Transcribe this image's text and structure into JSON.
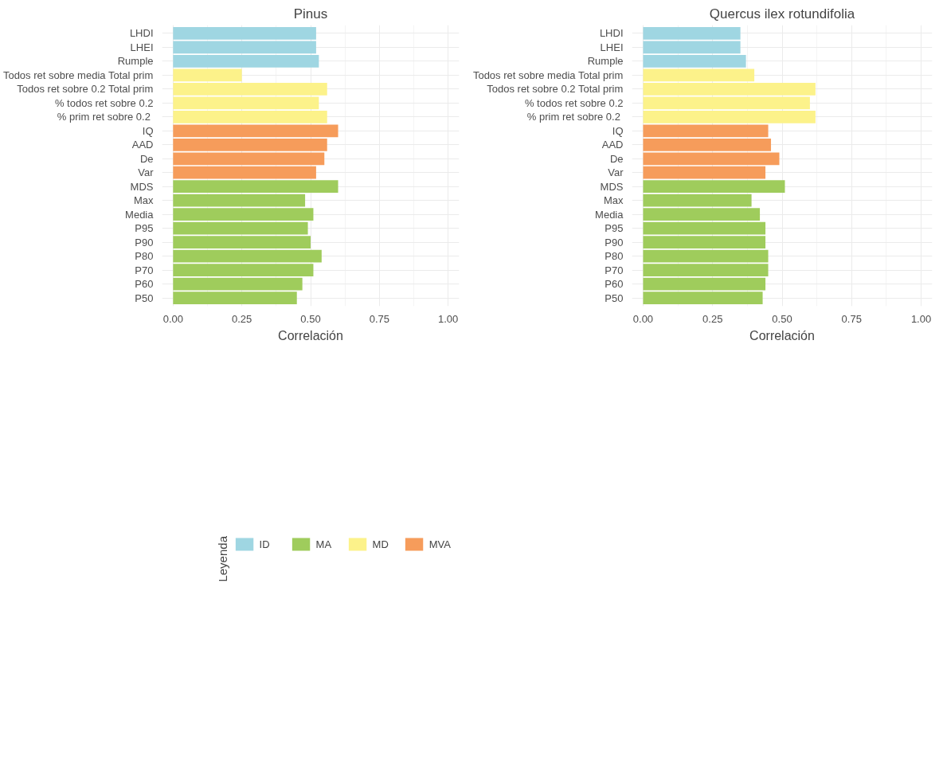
{
  "chart_data": [
    {
      "type": "bar",
      "orientation": "horizontal",
      "title": "Pinus",
      "xlabel": "Correlación",
      "legend_title": "Leyenda",
      "legend": "bottom",
      "grid": true,
      "categories": [
        "LHDI",
        "LHEI",
        "Rumple",
        "Todos ret sobre media Total prim",
        "Todos ret sobre 0.2 Total prim",
        "% todos ret sobre 0.2",
        "% prim ret sobre  0.2",
        "IQ",
        "AAD",
        "De",
        "Var",
        "MDS",
        "Max",
        "Media",
        "P95",
        "P90",
        "P80",
        "P70",
        "P60",
        "P50"
      ],
      "xlim": [
        -0.04,
        1.04
      ],
      "xticks": [
        {
          "value": 0,
          "label": "0.00"
        },
        {
          "value": 0.25,
          "label": "0.25"
        },
        {
          "value": 0.5,
          "label": "0.50"
        },
        {
          "value": 0.75,
          "label": "0.75"
        },
        {
          "value": 1,
          "label": "1.00"
        }
      ],
      "series": [
        {
          "name": "ID",
          "color": "#9fd6e2",
          "values": [
            0.52,
            0.52,
            0.53,
            null,
            null,
            null,
            null,
            null,
            null,
            null,
            null,
            null,
            null,
            null,
            null,
            null,
            null,
            null,
            null,
            null
          ]
        },
        {
          "name": "MA",
          "color": "#9fcc5c",
          "values": [
            null,
            null,
            null,
            null,
            null,
            null,
            null,
            null,
            null,
            null,
            null,
            0.6,
            0.48,
            0.51,
            0.49,
            0.5,
            0.54,
            0.51,
            0.47,
            0.45
          ]
        },
        {
          "name": "MD",
          "color": "#fcf28a",
          "values": [
            null,
            null,
            null,
            0.25,
            0.56,
            0.53,
            0.56,
            null,
            null,
            null,
            null,
            null,
            null,
            null,
            null,
            null,
            null,
            null,
            null,
            null
          ]
        },
        {
          "name": "MVA",
          "color": "#f69c5b",
          "values": [
            null,
            null,
            null,
            null,
            null,
            null,
            null,
            0.6,
            0.56,
            0.55,
            0.52,
            null,
            null,
            null,
            null,
            null,
            null,
            null,
            null,
            null
          ]
        }
      ]
    },
    {
      "type": "bar",
      "orientation": "horizontal",
      "title": "Quercus ilex rotundifolia",
      "xlabel": "Correlación",
      "grid": true,
      "categories": [
        "LHDI",
        "LHEI",
        "Rumple",
        "Todos ret sobre media Total prim",
        "Todos ret sobre 0.2 Total prim",
        "% todos ret sobre 0.2",
        "% prim ret sobre  0.2",
        "IQ",
        "AAD",
        "De",
        "Var",
        "MDS",
        "Max",
        "Media",
        "P95",
        "P90",
        "P80",
        "P70",
        "P60",
        "P50"
      ],
      "xlim": [
        -0.04,
        1.04
      ],
      "xticks": [
        {
          "value": 0,
          "label": "0.00"
        },
        {
          "value": 0.25,
          "label": "0.25"
        },
        {
          "value": 0.5,
          "label": "0.50"
        },
        {
          "value": 0.75,
          "label": "0.75"
        },
        {
          "value": 1,
          "label": "1.00"
        }
      ],
      "series": [
        {
          "color": "#9fd6e2",
          "values": [
            0.35,
            0.35,
            0.37,
            null,
            null,
            null,
            null,
            null,
            null,
            null,
            null,
            null,
            null,
            null,
            null,
            null,
            null,
            null,
            null,
            null
          ]
        },
        {
          "color": "#9fcc5c",
          "values": [
            null,
            null,
            null,
            null,
            null,
            null,
            null,
            null,
            null,
            null,
            null,
            0.51,
            0.39,
            0.42,
            0.44,
            0.44,
            0.45,
            0.45,
            0.44,
            0.43
          ]
        },
        {
          "color": "#fcf28a",
          "values": [
            null,
            null,
            null,
            0.4,
            0.62,
            0.6,
            0.62,
            null,
            null,
            null,
            null,
            null,
            null,
            null,
            null,
            null,
            null,
            null,
            null,
            null
          ]
        },
        {
          "color": "#f69c5b",
          "values": [
            null,
            null,
            null,
            null,
            null,
            null,
            null,
            0.45,
            0.46,
            0.49,
            0.44,
            null,
            null,
            null,
            null,
            null,
            null,
            null,
            null,
            null
          ]
        }
      ]
    }
  ]
}
